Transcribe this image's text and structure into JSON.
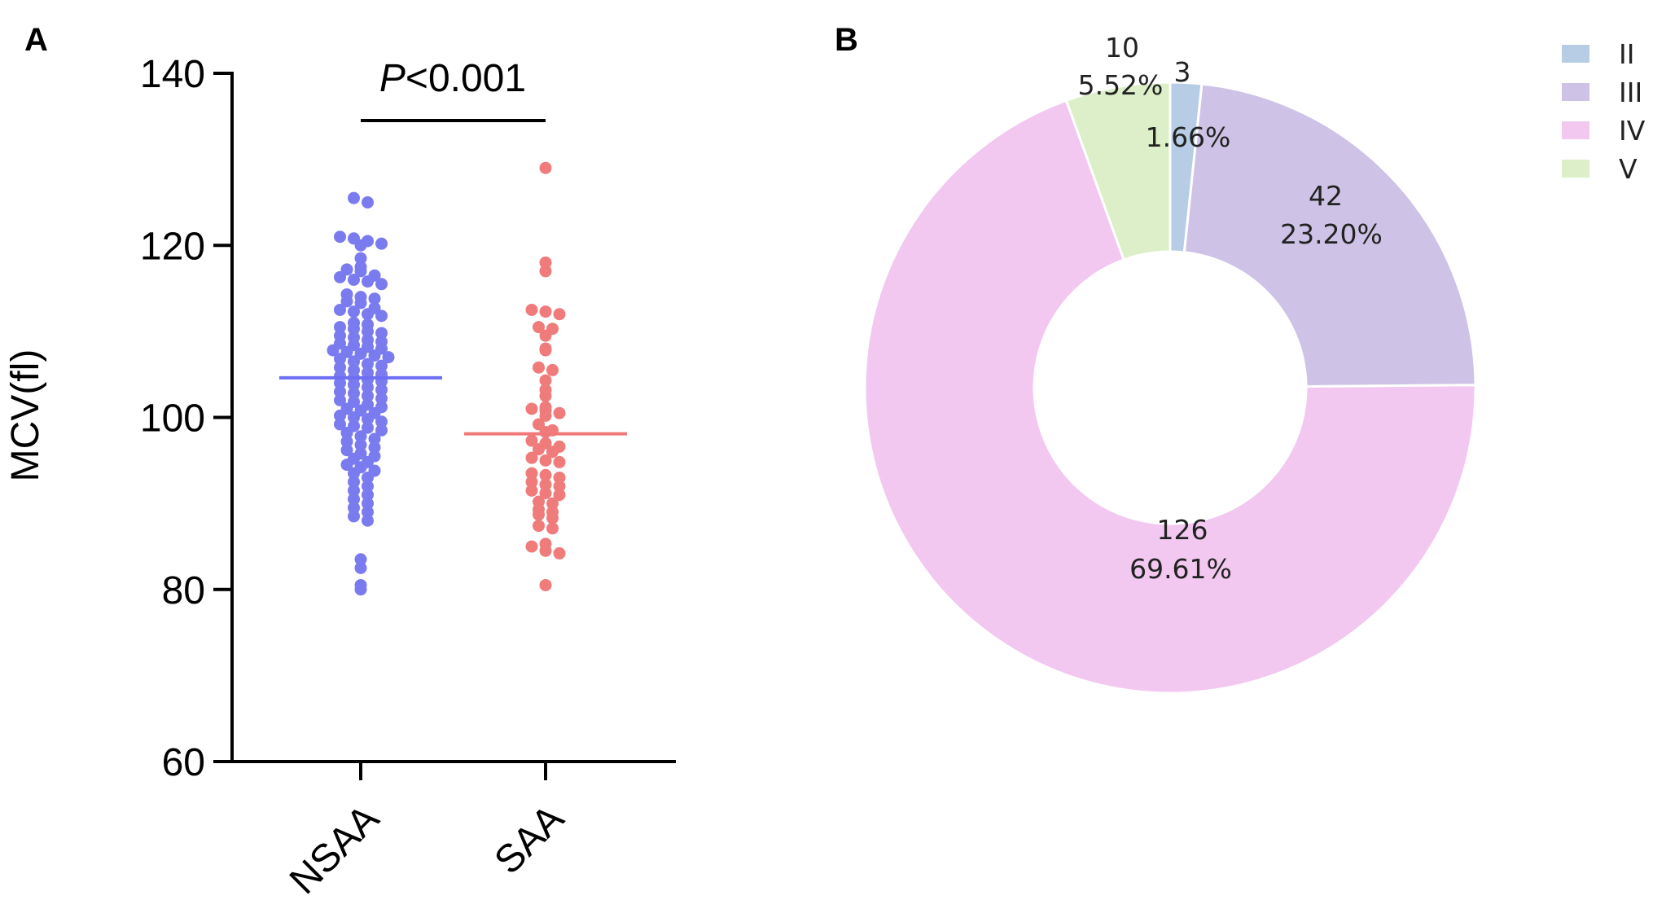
{
  "panels": {
    "a_label": "A",
    "b_label": "B"
  },
  "chart_data": [
    {
      "type": "scatter",
      "title": "",
      "xlabel": "",
      "ylabel": "MCV(fl)",
      "ylim": [
        60,
        140
      ],
      "yticks": [
        "60",
        "80",
        "100",
        "120",
        "140"
      ],
      "categories": [
        "NSAA",
        "SAA"
      ],
      "annotation": {
        "prefix": "P",
        "text": "<0.001"
      },
      "grid": false,
      "series": [
        {
          "color": "#7b7bf0",
          "mean_color": "#6e6ef5",
          "mean": 104.6,
          "values": [
            125.5,
            125.0,
            121.0,
            120.8,
            120.5,
            120.2,
            120.0,
            118.5,
            117.5,
            117.2,
            117.0,
            116.5,
            116.3,
            116.0,
            115.8,
            115.5,
            114.3,
            114.0,
            113.8,
            113.5,
            113.3,
            112.7,
            112.5,
            112.3,
            112.0,
            111.8,
            111.0,
            110.8,
            110.5,
            110.3,
            110.0,
            109.8,
            109.5,
            109.3,
            109.0,
            108.8,
            108.6,
            108.4,
            108.2,
            108.0,
            107.8,
            107.6,
            107.4,
            107.2,
            107.0,
            106.8,
            106.5,
            106.2,
            106.0,
            105.8,
            105.5,
            105.2,
            105.0,
            104.8,
            104.6,
            104.4,
            104.2,
            104.0,
            103.8,
            103.5,
            103.2,
            103.0,
            102.8,
            102.5,
            102.2,
            102.0,
            101.8,
            101.5,
            101.2,
            101.0,
            100.8,
            100.5,
            100.2,
            100.0,
            99.8,
            99.5,
            99.2,
            99.0,
            98.8,
            98.5,
            98.2,
            97.8,
            97.5,
            97.2,
            96.8,
            96.5,
            96.2,
            95.8,
            95.5,
            95.2,
            94.8,
            94.5,
            94.2,
            93.8,
            93.5,
            93.0,
            92.5,
            92.0,
            91.5,
            91.0,
            90.5,
            90.0,
            89.5,
            89.0,
            88.5,
            88.0,
            83.5,
            82.5,
            80.5,
            80.0
          ]
        },
        {
          "color": "#f07b7b",
          "mean_color": "#f07878",
          "mean": 98.1,
          "values": [
            129.0,
            118.0,
            117.0,
            112.5,
            112.3,
            112.0,
            110.5,
            110.3,
            109.5,
            108.0,
            107.8,
            105.8,
            105.5,
            104.3,
            103.2,
            102.5,
            101.2,
            101.0,
            100.8,
            100.5,
            100.2,
            99.2,
            98.5,
            98.3,
            97.3,
            97.0,
            96.6,
            96.3,
            96.0,
            95.3,
            95.0,
            94.8,
            93.5,
            93.3,
            93.0,
            92.5,
            92.2,
            92.0,
            91.5,
            91.2,
            91.0,
            90.2,
            90.0,
            89.3,
            89.0,
            88.7,
            88.3,
            87.4,
            87.1,
            85.3,
            85.0,
            84.5,
            84.2,
            80.5
          ]
        }
      ]
    },
    {
      "type": "pie",
      "title": "",
      "donut": true,
      "legend_position": "top-right",
      "slices": [
        {
          "name": "II",
          "value": 3,
          "percent_label": "1.66%",
          "color": "#b7cde6"
        },
        {
          "name": "III",
          "value": 42,
          "percent_label": "23.20%",
          "color": "#cec3e6"
        },
        {
          "name": "IV",
          "value": 126,
          "percent_label": "69.61%",
          "color": "#f2c8f0"
        },
        {
          "name": "V",
          "value": 10,
          "percent_label": "5.52%",
          "color": "#dcefc8"
        }
      ]
    }
  ]
}
